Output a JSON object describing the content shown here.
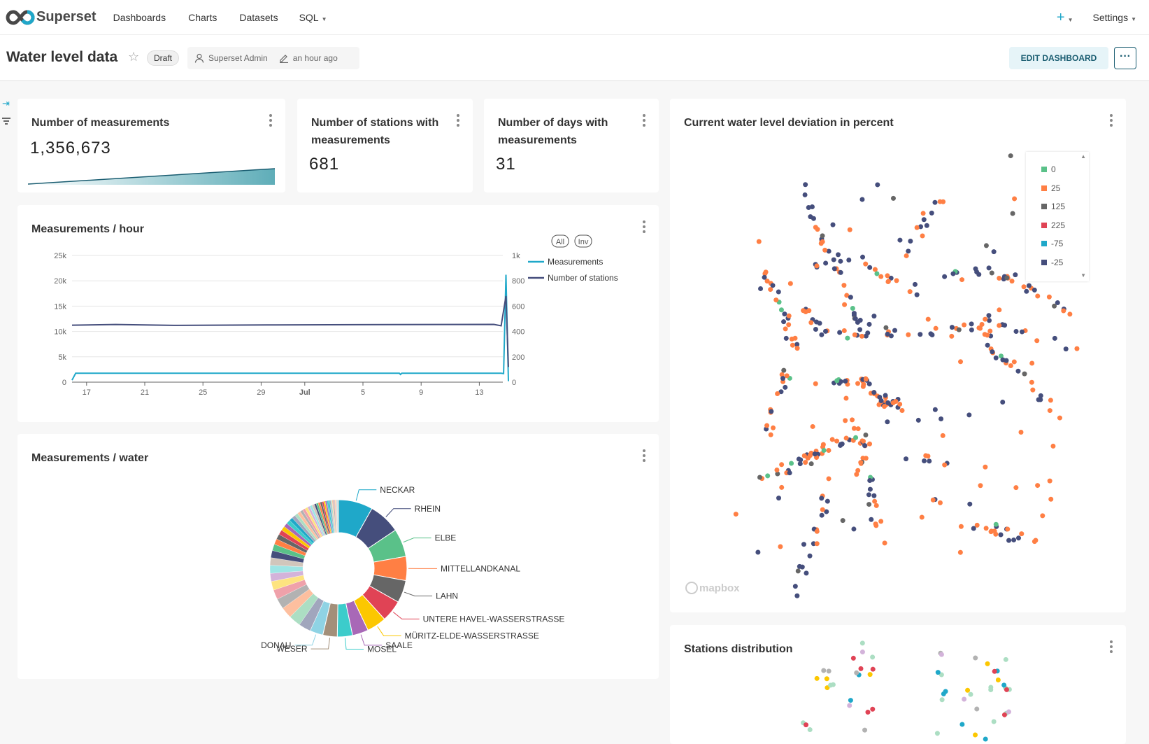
{
  "nav": {
    "brand": "Superset",
    "items": [
      "Dashboards",
      "Charts",
      "Datasets",
      "SQL"
    ],
    "plus": "+",
    "settings": "Settings"
  },
  "header": {
    "title": "Water level data",
    "status": "Draft",
    "owner": "Superset Admin",
    "modified": "an hour ago",
    "edit_label": "EDIT DASHBOARD",
    "more_label": "···"
  },
  "kpis": [
    {
      "title": "Number of measurements",
      "value": "1,356,673"
    },
    {
      "title": "Number of stations with measurements",
      "value": "681"
    },
    {
      "title": "Number of days with measurements",
      "value": "31"
    }
  ],
  "colors": {
    "accent": "#20a7c9",
    "navy": "#454e7c",
    "teal_dark": "#1a5d71"
  },
  "map": {
    "title": "Current water level deviation in percent",
    "attribution": "mapbox",
    "legend": [
      {
        "label": "0",
        "color": "#5ac189"
      },
      {
        "label": "25",
        "color": "#ff7f44"
      },
      {
        "label": "125",
        "color": "#666666"
      },
      {
        "label": "225",
        "color": "#e04355"
      },
      {
        "label": "-75",
        "color": "#1fa8c9"
      },
      {
        "label": "-25",
        "color": "#454e7c"
      }
    ]
  },
  "stations": {
    "title": "Stations distribution"
  },
  "chart_data": [
    {
      "type": "line",
      "title": "Measurements / hour",
      "x_ticks": [
        "17",
        "21",
        "25",
        "29",
        "Jul",
        "5",
        "9",
        "13"
      ],
      "y_ticks_left": [
        "0",
        "5k",
        "10k",
        "15k",
        "20k",
        "25k"
      ],
      "ylim_left": [
        0,
        25000
      ],
      "y_ticks_right": [
        "0",
        "200",
        "400",
        "600",
        "800",
        "1k"
      ],
      "ylim_right": [
        0,
        1000
      ],
      "xlim": [
        "2023-06-16",
        "2023-07-16"
      ],
      "legend_buttons": [
        "All",
        "Inv"
      ],
      "legend_placement": "right",
      "grid": true,
      "series": [
        {
          "name": "Measurements",
          "axis": "left",
          "color": "#1fa8c9",
          "points": [
            [
              "2023-06-16",
              400
            ],
            [
              "2023-06-16T06",
              1750
            ],
            [
              "2023-07-08T12",
              1750
            ],
            [
              "2023-07-08T14",
              1500
            ],
            [
              "2023-07-08T16",
              1750
            ],
            [
              "2023-07-15T12",
              1750
            ],
            [
              "2023-07-15T16",
              1700
            ],
            [
              "2023-07-15T20",
              21200
            ],
            [
              "2023-07-16",
              200
            ]
          ]
        },
        {
          "name": "Number of stations",
          "axis": "right",
          "color": "#454e7c",
          "points": [
            [
              "2023-06-16",
              450
            ],
            [
              "2023-06-19",
              455
            ],
            [
              "2023-06-23",
              448
            ],
            [
              "2023-06-30",
              452
            ],
            [
              "2023-07-08",
              454
            ],
            [
              "2023-07-15",
              456
            ],
            [
              "2023-07-15T12",
              445
            ],
            [
              "2023-07-15T20",
              680
            ],
            [
              "2023-07-16",
              120
            ]
          ]
        }
      ]
    },
    {
      "type": "pie",
      "donut": true,
      "title": "Measurements / water",
      "slices": [
        {
          "label": "NECKAR",
          "value": 8.6,
          "color": "#1fa8c9"
        },
        {
          "label": "RHEIN",
          "value": 7.9,
          "color": "#454e7c"
        },
        {
          "label": "ELBE",
          "value": 7.0,
          "color": "#5ac189"
        },
        {
          "label": "MITTELLANDKANAL",
          "value": 6.0,
          "color": "#ff7f44"
        },
        {
          "label": "LAHN",
          "value": 5.6,
          "color": "#666666"
        },
        {
          "label": "UNTERE HAVEL-WASSERSTRASSE",
          "value": 5.4,
          "color": "#e04355"
        },
        {
          "label": "MÜRITZ-ELDE-WASSERSTRASSE",
          "value": 4.9,
          "color": "#fcc700"
        },
        {
          "label": "SAALE",
          "value": 4.0,
          "color": "#a868b7"
        },
        {
          "label": "MOSEL",
          "value": 3.8,
          "color": "#3ccccb"
        },
        {
          "label": "WESER",
          "value": 3.6,
          "color": "#a38f79"
        },
        {
          "label": "DONAU",
          "value": 3.3,
          "color": "#8fd3e4"
        }
      ],
      "other_values": [
        3.0,
        3.0,
        2.8,
        2.6,
        2.4,
        2.2,
        2.0,
        2.0,
        1.9,
        1.8,
        1.6,
        1.4,
        1.3,
        1.2,
        1.1,
        1.0,
        1.0,
        0.9,
        0.9,
        0.8,
        0.8,
        0.7,
        0.7,
        0.7,
        0.6,
        0.6,
        0.6,
        0.5,
        0.5,
        0.5,
        0.5,
        0.4,
        0.4,
        0.4,
        0.4,
        0.3,
        0.3,
        0.3,
        0.3,
        0.3,
        0.2,
        0.2,
        0.2,
        0.2,
        0.2
      ],
      "other_colors": [
        "#a1a6bd",
        "#acdec3",
        "#fdbf9f",
        "#b2b2b2",
        "#efa1aa",
        "#fde380",
        "#d3b3da",
        "#9ee5e5",
        "#d1c6bc",
        "#454e7c",
        "#5ac189",
        "#ff7f44",
        "#666666",
        "#e04355",
        "#fcc700",
        "#a868b7",
        "#3ccccb",
        "#1fa8c9"
      ]
    }
  ]
}
